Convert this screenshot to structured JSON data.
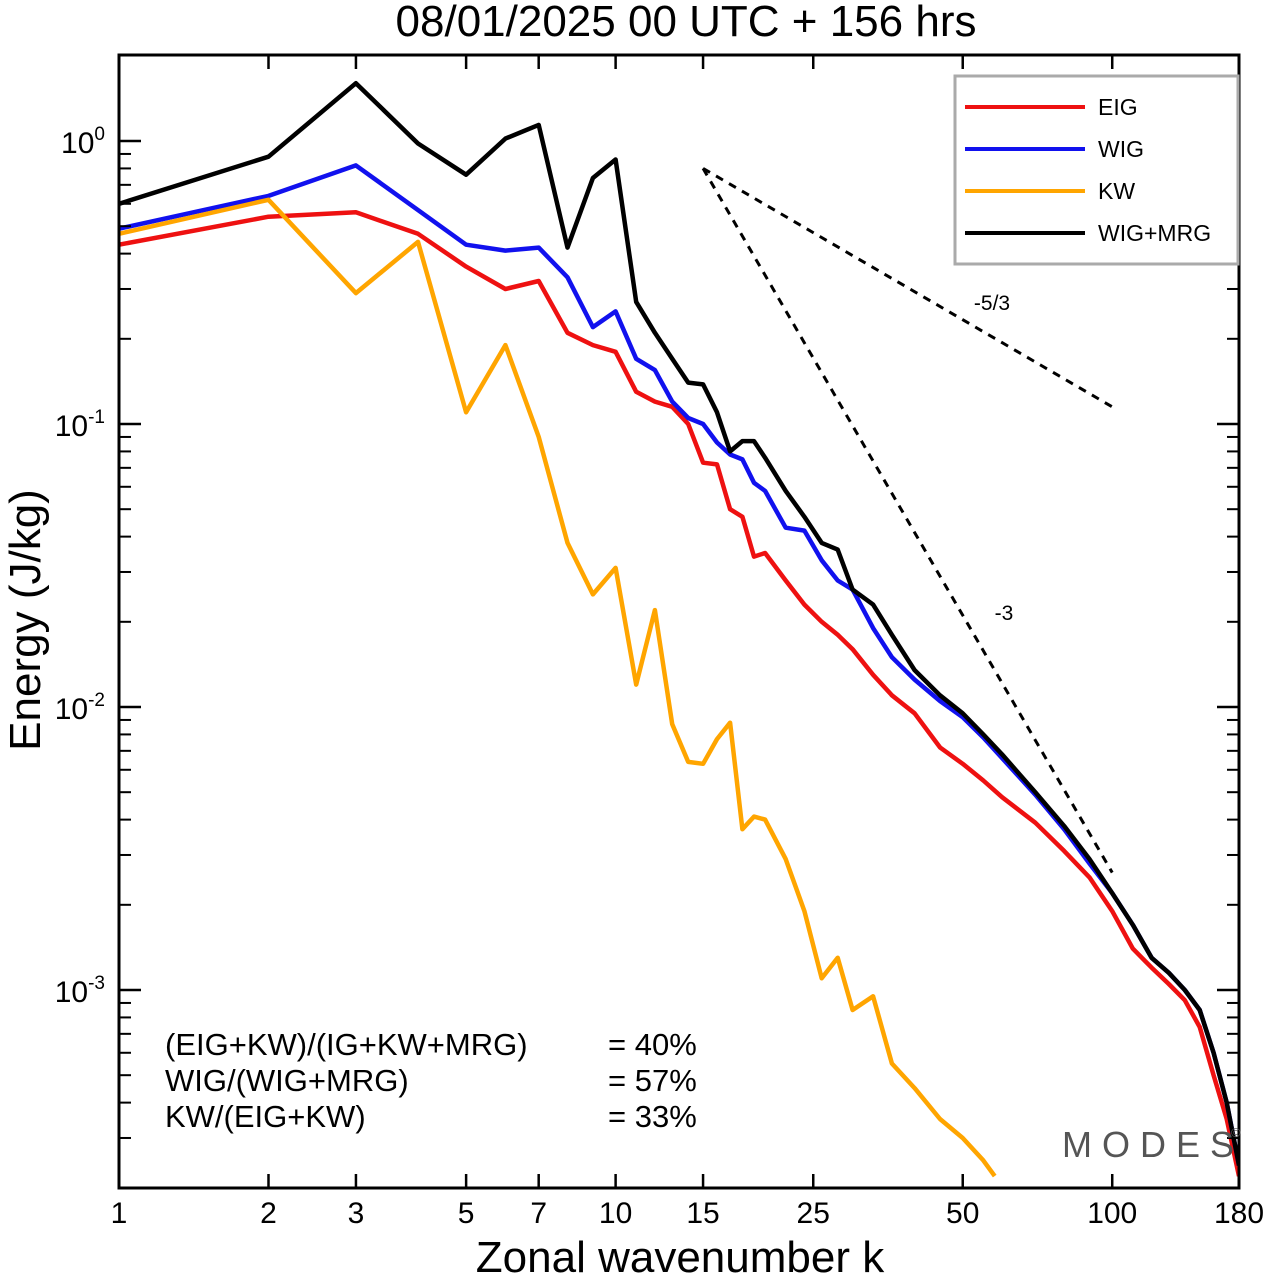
{
  "chart_data": {
    "type": "line",
    "title": "08/01/2025  00 UTC  + 156 hrs",
    "xlabel": "Zonal wavenumber k",
    "ylabel": "Energy (J/kg)",
    "xscale": "log",
    "yscale": "log",
    "xlim": [
      1,
      180
    ],
    "ylim": [
      0.0002,
      2.0
    ],
    "xticks": [
      {
        "value": 1,
        "label": "1"
      },
      {
        "value": 2,
        "label": "2"
      },
      {
        "value": 3,
        "label": "3"
      },
      {
        "value": 5,
        "label": "5"
      },
      {
        "value": 7,
        "label": "7"
      },
      {
        "value": 10,
        "label": "10"
      },
      {
        "value": 15,
        "label": "15"
      },
      {
        "value": 25,
        "label": "25"
      },
      {
        "value": 50,
        "label": "50"
      },
      {
        "value": 100,
        "label": "100"
      },
      {
        "value": 180,
        "label": "180"
      }
    ],
    "yticks": [
      {
        "value": 1.0,
        "base": "10",
        "exp": "0"
      },
      {
        "value": 0.1,
        "base": "10",
        "exp": "-1"
      },
      {
        "value": 0.01,
        "base": "10",
        "exp": "-2"
      },
      {
        "value": 0.001,
        "base": "10",
        "exp": "-3"
      }
    ],
    "legend_position": "top-right",
    "grid": false,
    "series": [
      {
        "name": "EIG",
        "color": "#ee1111",
        "x": [
          1,
          2,
          3,
          4,
          5,
          6,
          7,
          8,
          9,
          10,
          11,
          12,
          13,
          14,
          15,
          16,
          17,
          18,
          19,
          20,
          22,
          24,
          26,
          28,
          30,
          33,
          36,
          40,
          45,
          50,
          55,
          60,
          70,
          80,
          90,
          100,
          110,
          120,
          130,
          140,
          150,
          160,
          170,
          180
        ],
        "y": [
          0.43,
          0.54,
          0.56,
          0.47,
          0.36,
          0.3,
          0.32,
          0.21,
          0.19,
          0.18,
          0.13,
          0.12,
          0.115,
          0.1,
          0.073,
          0.072,
          0.05,
          0.047,
          0.034,
          0.035,
          0.028,
          0.023,
          0.02,
          0.018,
          0.016,
          0.013,
          0.011,
          0.0095,
          0.0072,
          0.0063,
          0.0055,
          0.0048,
          0.0039,
          0.0031,
          0.0025,
          0.0019,
          0.0014,
          0.0012,
          0.00105,
          0.00092,
          0.00074,
          0.0005,
          0.00035,
          0.00022
        ]
      },
      {
        "name": "WIG",
        "color": "#1111ee",
        "x": [
          1,
          2,
          3,
          4,
          5,
          6,
          7,
          8,
          9,
          10,
          11,
          12,
          13,
          14,
          15,
          16,
          17,
          18,
          19,
          20,
          22,
          24,
          26,
          28,
          30,
          33,
          36,
          40,
          45,
          50,
          55,
          60,
          70,
          80,
          90,
          100,
          110,
          120,
          130,
          140,
          150,
          160,
          170,
          180
        ],
        "y": [
          0.49,
          0.64,
          0.82,
          0.57,
          0.43,
          0.41,
          0.42,
          0.33,
          0.22,
          0.25,
          0.17,
          0.155,
          0.12,
          0.105,
          0.1,
          0.086,
          0.078,
          0.075,
          0.062,
          0.058,
          0.043,
          0.042,
          0.033,
          0.028,
          0.026,
          0.019,
          0.015,
          0.0125,
          0.0105,
          0.0092,
          0.0078,
          0.0066,
          0.0049,
          0.0037,
          0.0028,
          0.0022,
          0.0017,
          0.0013,
          0.00115,
          0.001,
          0.00085,
          0.0006,
          0.0004,
          0.00024
        ]
      },
      {
        "name": "KW",
        "color": "#ffa500",
        "x": [
          1,
          2,
          3,
          4,
          5,
          6,
          7,
          8,
          9,
          10,
          11,
          12,
          13,
          14,
          15,
          16,
          17,
          18,
          19,
          20,
          22,
          24,
          26,
          28,
          30,
          33,
          36,
          40,
          45,
          50,
          55,
          58
        ],
        "y": [
          0.47,
          0.62,
          0.29,
          0.44,
          0.11,
          0.19,
          0.09,
          0.038,
          0.025,
          0.031,
          0.012,
          0.022,
          0.0087,
          0.0064,
          0.0063,
          0.0077,
          0.0088,
          0.0037,
          0.0041,
          0.004,
          0.0029,
          0.0019,
          0.0011,
          0.0013,
          0.00085,
          0.00095,
          0.00055,
          0.00045,
          0.00035,
          0.0003,
          0.00025,
          0.00022
        ]
      },
      {
        "name": "WIG+MRG",
        "color": "#000000",
        "x": [
          1,
          2,
          3,
          4,
          5,
          6,
          7,
          8,
          9,
          10,
          11,
          12,
          13,
          14,
          15,
          16,
          17,
          18,
          19,
          20,
          22,
          24,
          26,
          28,
          30,
          33,
          36,
          40,
          45,
          50,
          55,
          60,
          70,
          80,
          90,
          100,
          110,
          120,
          130,
          140,
          150,
          160,
          170,
          180
        ],
        "y": [
          0.6,
          0.88,
          1.6,
          0.98,
          0.76,
          1.02,
          1.14,
          0.42,
          0.74,
          0.86,
          0.27,
          0.21,
          0.17,
          0.14,
          0.138,
          0.11,
          0.08,
          0.087,
          0.087,
          0.076,
          0.058,
          0.047,
          0.038,
          0.036,
          0.026,
          0.023,
          0.018,
          0.0135,
          0.011,
          0.0095,
          0.008,
          0.0068,
          0.005,
          0.0038,
          0.0029,
          0.0022,
          0.0017,
          0.0013,
          0.00115,
          0.001,
          0.00085,
          0.0006,
          0.0004,
          0.00024
        ]
      }
    ],
    "reference_lines": [
      {
        "label": "-5/3",
        "x": [
          15,
          100
        ],
        "y": [
          0.8,
          0.115
        ]
      },
      {
        "label": "-3",
        "x": [
          15,
          100
        ],
        "y": [
          0.8,
          0.0026
        ]
      }
    ],
    "annotations": [
      {
        "name": "(EIG+KW)/(IG+KW+MRG)",
        "value": "= 40%"
      },
      {
        "name": "WIG/(WIG+MRG)",
        "value": "= 57%"
      },
      {
        "name": "KW/(EIG+KW)",
        "value": "= 33%"
      }
    ],
    "watermark": "MODES",
    "watermark_mark": "©"
  }
}
